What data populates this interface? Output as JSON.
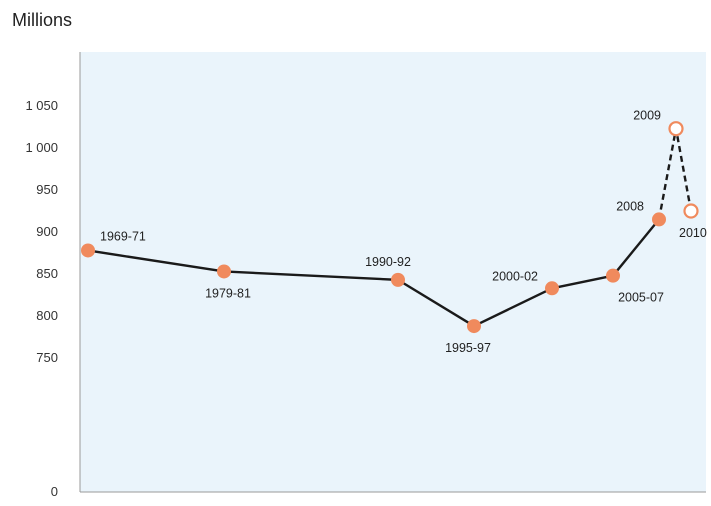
{
  "chart_data": {
    "type": "line",
    "title": "",
    "ylabel": "Millions",
    "xlabel": "",
    "ylim": [
      0,
      1050
    ],
    "yticks": [
      "0",
      "750",
      "800",
      "850",
      "900",
      "950",
      "1 000",
      "1 050"
    ],
    "ytick_values": [
      0,
      750,
      800,
      850,
      900,
      950,
      1000,
      1050
    ],
    "y_axis_break": true,
    "grid": false,
    "background_color": "#EAF4FB",
    "marker_color": "#F08A5D",
    "line_color": "#1A1A1A",
    "x_order": [
      "1969-71",
      "1979-81",
      "1990-92",
      "1995-97",
      "2000-02",
      "2005-07",
      "2008",
      "2009",
      "2010"
    ],
    "points": [
      {
        "x": "1969-71",
        "y": 878,
        "label": "1969-71",
        "marker": "filled",
        "label_pos": "above-right"
      },
      {
        "x": "1979-81",
        "y": 853,
        "label": "1979-81",
        "marker": "filled",
        "label_pos": "below"
      },
      {
        "x": "1990-92",
        "y": 843,
        "label": "1990-92",
        "marker": "filled",
        "label_pos": "above"
      },
      {
        "x": "1995-97",
        "y": 788,
        "label": "1995-97",
        "marker": "filled",
        "label_pos": "below"
      },
      {
        "x": "2000-02",
        "y": 833,
        "label": "2000-02",
        "marker": "filled",
        "label_pos": "above-left"
      },
      {
        "x": "2005-07",
        "y": 848,
        "label": "2005-07",
        "marker": "filled",
        "label_pos": "below"
      },
      {
        "x": "2008",
        "y": 915,
        "label": "2008",
        "marker": "filled",
        "label_pos": "left"
      },
      {
        "x": "2009",
        "y": 1023,
        "label": "2009",
        "marker": "hollow",
        "label_pos": "left"
      },
      {
        "x": "2010",
        "y": 925,
        "label": "2010",
        "marker": "hollow",
        "label_pos": "below"
      }
    ],
    "solid_segment": [
      "1969-71",
      "1979-81",
      "1990-92",
      "1995-97",
      "2000-02",
      "2005-07",
      "2008"
    ],
    "dashed_segment": [
      "2008",
      "2009",
      "2010"
    ]
  }
}
